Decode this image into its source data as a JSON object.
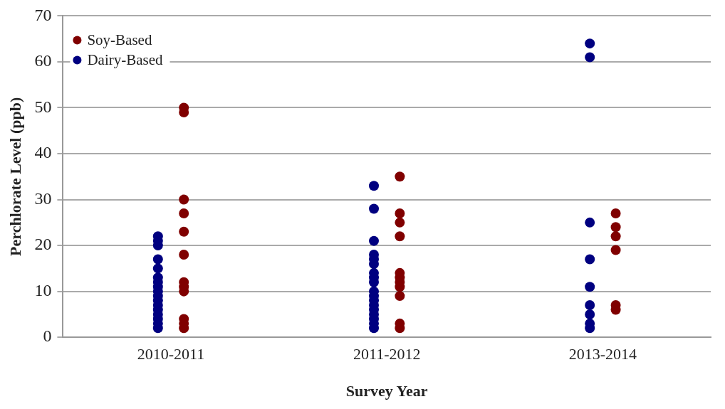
{
  "chart_data": {
    "type": "scatter",
    "xlabel": "Survey Year",
    "ylabel": "Perchlorate Level (ppb)",
    "categories": [
      "2010-2011",
      "2011-2012",
      "2013-2014"
    ],
    "ylim": [
      0,
      70
    ],
    "yticks": [
      0,
      10,
      20,
      30,
      40,
      50,
      60,
      70
    ],
    "grid": "y",
    "legend": "top left",
    "marker": "circle",
    "series": [
      {
        "name": "Soy-Based",
        "color": "#800000",
        "x": [
          "2010-2011",
          "2010-2011",
          "2010-2011",
          "2010-2011",
          "2010-2011",
          "2010-2011",
          "2010-2011",
          "2010-2011",
          "2010-2011",
          "2010-2011",
          "2010-2011",
          "2010-2011",
          "2011-2012",
          "2011-2012",
          "2011-2012",
          "2011-2012",
          "2011-2012",
          "2011-2012",
          "2011-2012",
          "2011-2012",
          "2011-2012",
          "2011-2012",
          "2011-2012",
          "2013-2014",
          "2013-2014",
          "2013-2014",
          "2013-2014",
          "2013-2014",
          "2013-2014"
        ],
        "values": [
          50,
          49,
          30,
          27,
          23,
          18,
          12,
          11,
          10,
          4,
          3,
          2,
          35,
          27,
          25,
          22,
          14,
          13,
          12,
          11,
          9,
          3,
          2,
          27,
          24,
          22,
          19,
          7,
          6
        ]
      },
      {
        "name": "Dairy-Based",
        "color": "#000080",
        "x": [
          "2010-2011",
          "2010-2011",
          "2010-2011",
          "2010-2011",
          "2010-2011",
          "2010-2011",
          "2010-2011",
          "2010-2011",
          "2010-2011",
          "2010-2011",
          "2010-2011",
          "2010-2011",
          "2010-2011",
          "2010-2011",
          "2010-2011",
          "2010-2011",
          "2010-2011",
          "2011-2012",
          "2011-2012",
          "2011-2012",
          "2011-2012",
          "2011-2012",
          "2011-2012",
          "2011-2012",
          "2011-2012",
          "2011-2012",
          "2011-2012",
          "2011-2012",
          "2011-2012",
          "2011-2012",
          "2011-2012",
          "2011-2012",
          "2011-2012",
          "2011-2012",
          "2011-2012",
          "2013-2014",
          "2013-2014",
          "2013-2014",
          "2013-2014",
          "2013-2014",
          "2013-2014",
          "2013-2014",
          "2013-2014",
          "2013-2014"
        ],
        "values": [
          2,
          3,
          4,
          5,
          6,
          7,
          8,
          9,
          10,
          11,
          12,
          13,
          15,
          17,
          20,
          21,
          22,
          33,
          28,
          21,
          18,
          17,
          16,
          14,
          13,
          12,
          10,
          9,
          8,
          7,
          6,
          5,
          4,
          3,
          2,
          64,
          61,
          25,
          17,
          11,
          7,
          5,
          3,
          2
        ]
      }
    ]
  }
}
